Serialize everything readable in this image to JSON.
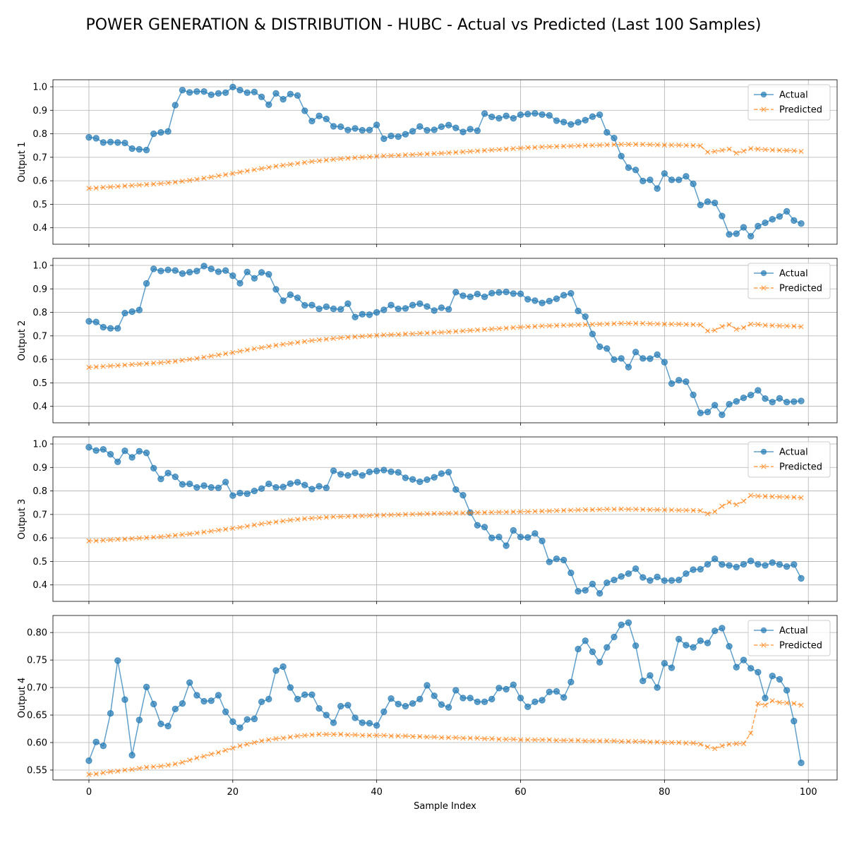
{
  "figure_title": "POWER GENERATION & DISTRIBUTION - HUBC - Actual vs Predicted (Last 100 Samples)",
  "colors": {
    "actual": "#1f77b4",
    "predicted": "#ff7f0e",
    "grid": "#b0b0b0",
    "axes": "#000000"
  },
  "chart_data": [
    {
      "type": "line",
      "title": "",
      "xlabel": "",
      "ylabel": "Output 1",
      "xlim": [
        -5,
        104
      ],
      "ylim": [
        0.33,
        1.03
      ],
      "xticks": [
        0,
        20,
        40,
        60,
        80,
        100
      ],
      "yticks": [
        0.4,
        0.5,
        0.6,
        0.7,
        0.8,
        0.9,
        1.0
      ],
      "ytick_labels": [
        "0.4",
        "0.5",
        "0.6",
        "0.7",
        "0.8",
        "0.9",
        "1.0"
      ],
      "grid": true,
      "legend": "upper right",
      "series": [
        {
          "name": "Actual",
          "marker": "o",
          "style": "solid",
          "values": [
            0.785,
            0.781,
            0.763,
            0.765,
            0.763,
            0.761,
            0.737,
            0.734,
            0.731,
            0.8,
            0.806,
            0.81,
            0.922,
            0.986,
            0.976,
            0.98,
            0.98,
            0.966,
            0.972,
            0.975,
            0.999,
            0.986,
            0.975,
            0.978,
            0.957,
            0.924,
            0.972,
            0.947,
            0.969,
            0.963,
            0.898,
            0.854,
            0.876,
            0.863,
            0.832,
            0.83,
            0.816,
            0.823,
            0.815,
            0.816,
            0.838,
            0.779,
            0.791,
            0.788,
            0.798,
            0.811,
            0.831,
            0.815,
            0.817,
            0.83,
            0.837,
            0.825,
            0.808,
            0.82,
            0.813,
            0.886,
            0.872,
            0.866,
            0.876,
            0.866,
            0.881,
            0.884,
            0.887,
            0.882,
            0.878,
            0.856,
            0.85,
            0.84,
            0.849,
            0.858,
            0.873,
            0.881,
            0.806,
            0.782,
            0.705,
            0.656,
            0.646,
            0.599,
            0.604,
            0.567,
            0.631,
            0.604,
            0.604,
            0.619,
            0.587,
            0.497,
            0.511,
            0.506,
            0.45,
            0.372,
            0.375,
            0.402,
            0.364,
            0.407,
            0.421,
            0.436,
            0.448,
            0.47,
            0.431,
            0.418
          ]
        },
        {
          "name": "Predicted",
          "marker": "x",
          "style": "dashed",
          "values": [
            0.568,
            0.569,
            0.572,
            0.574,
            0.576,
            0.578,
            0.58,
            0.582,
            0.584,
            0.586,
            0.588,
            0.591,
            0.594,
            0.598,
            0.602,
            0.606,
            0.611,
            0.616,
            0.621,
            0.626,
            0.631,
            0.637,
            0.642,
            0.647,
            0.652,
            0.657,
            0.662,
            0.666,
            0.67,
            0.674,
            0.678,
            0.682,
            0.685,
            0.688,
            0.691,
            0.694,
            0.696,
            0.698,
            0.7,
            0.702,
            0.704,
            0.706,
            0.707,
            0.708,
            0.71,
            0.711,
            0.713,
            0.714,
            0.716,
            0.717,
            0.719,
            0.721,
            0.723,
            0.725,
            0.727,
            0.729,
            0.731,
            0.733,
            0.735,
            0.737,
            0.739,
            0.741,
            0.742,
            0.744,
            0.745,
            0.746,
            0.747,
            0.748,
            0.749,
            0.75,
            0.751,
            0.752,
            0.753,
            0.754,
            0.755,
            0.755,
            0.755,
            0.755,
            0.754,
            0.753,
            0.752,
            0.752,
            0.752,
            0.751,
            0.75,
            0.749,
            0.722,
            0.725,
            0.73,
            0.735,
            0.718,
            0.727,
            0.737,
            0.735,
            0.733,
            0.731,
            0.73,
            0.729,
            0.728,
            0.725
          ]
        }
      ]
    },
    {
      "type": "line",
      "title": "",
      "xlabel": "",
      "ylabel": "Output 2",
      "xlim": [
        -5,
        104
      ],
      "ylim": [
        0.33,
        1.03
      ],
      "xticks": [
        0,
        20,
        40,
        60,
        80,
        100
      ],
      "yticks": [
        0.4,
        0.5,
        0.6,
        0.7,
        0.8,
        0.9,
        1.0
      ],
      "ytick_labels": [
        "0.4",
        "0.5",
        "0.6",
        "0.7",
        "0.8",
        "0.9",
        "1.0"
      ],
      "grid": true,
      "legend": "upper right",
      "series": [
        {
          "name": "Actual",
          "marker": "o",
          "style": "solid",
          "values": [
            0.762,
            0.759,
            0.737,
            0.732,
            0.732,
            0.797,
            0.803,
            0.81,
            0.923,
            0.985,
            0.976,
            0.981,
            0.978,
            0.965,
            0.971,
            0.976,
            0.997,
            0.985,
            0.973,
            0.978,
            0.956,
            0.924,
            0.972,
            0.945,
            0.97,
            0.962,
            0.898,
            0.85,
            0.875,
            0.862,
            0.83,
            0.831,
            0.815,
            0.824,
            0.815,
            0.813,
            0.837,
            0.78,
            0.792,
            0.79,
            0.8,
            0.811,
            0.831,
            0.815,
            0.817,
            0.831,
            0.837,
            0.825,
            0.808,
            0.82,
            0.813,
            0.886,
            0.871,
            0.866,
            0.878,
            0.866,
            0.882,
            0.885,
            0.887,
            0.88,
            0.879,
            0.856,
            0.85,
            0.84,
            0.848,
            0.858,
            0.873,
            0.881,
            0.806,
            0.782,
            0.708,
            0.654,
            0.646,
            0.599,
            0.604,
            0.567,
            0.631,
            0.604,
            0.603,
            0.62,
            0.588,
            0.497,
            0.511,
            0.505,
            0.449,
            0.372,
            0.376,
            0.405,
            0.364,
            0.409,
            0.421,
            0.436,
            0.448,
            0.468,
            0.433,
            0.418,
            0.434,
            0.418,
            0.42,
            0.423
          ]
        },
        {
          "name": "Predicted",
          "marker": "x",
          "style": "dashed",
          "values": [
            0.566,
            0.568,
            0.57,
            0.572,
            0.574,
            0.576,
            0.578,
            0.58,
            0.582,
            0.584,
            0.586,
            0.589,
            0.592,
            0.596,
            0.6,
            0.604,
            0.609,
            0.614,
            0.619,
            0.624,
            0.629,
            0.635,
            0.64,
            0.645,
            0.65,
            0.655,
            0.66,
            0.664,
            0.668,
            0.672,
            0.676,
            0.68,
            0.683,
            0.686,
            0.689,
            0.692,
            0.694,
            0.696,
            0.698,
            0.7,
            0.702,
            0.704,
            0.705,
            0.706,
            0.708,
            0.709,
            0.711,
            0.712,
            0.714,
            0.715,
            0.717,
            0.719,
            0.721,
            0.723,
            0.725,
            0.727,
            0.729,
            0.731,
            0.733,
            0.735,
            0.737,
            0.739,
            0.74,
            0.742,
            0.743,
            0.744,
            0.745,
            0.746,
            0.747,
            0.748,
            0.749,
            0.75,
            0.751,
            0.752,
            0.753,
            0.753,
            0.753,
            0.753,
            0.752,
            0.751,
            0.75,
            0.75,
            0.75,
            0.749,
            0.748,
            0.747,
            0.721,
            0.724,
            0.74,
            0.748,
            0.728,
            0.735,
            0.75,
            0.749,
            0.745,
            0.744,
            0.743,
            0.742,
            0.741,
            0.739
          ]
        }
      ]
    },
    {
      "type": "line",
      "title": "",
      "xlabel": "",
      "ylabel": "Output 3",
      "xlim": [
        -5,
        104
      ],
      "ylim": [
        0.33,
        1.03
      ],
      "xticks": [
        0,
        20,
        40,
        60,
        80,
        100
      ],
      "yticks": [
        0.4,
        0.5,
        0.6,
        0.7,
        0.8,
        0.9,
        1.0
      ],
      "ytick_labels": [
        "0.4",
        "0.5",
        "0.6",
        "0.7",
        "0.8",
        "0.9",
        "1.0"
      ],
      "grid": true,
      "legend": "upper right",
      "series": [
        {
          "name": "Actual",
          "marker": "o",
          "style": "solid",
          "values": [
            0.986,
            0.972,
            0.977,
            0.956,
            0.924,
            0.971,
            0.943,
            0.969,
            0.962,
            0.897,
            0.851,
            0.876,
            0.86,
            0.828,
            0.83,
            0.815,
            0.823,
            0.815,
            0.813,
            0.838,
            0.78,
            0.791,
            0.788,
            0.8,
            0.81,
            0.83,
            0.815,
            0.817,
            0.831,
            0.837,
            0.825,
            0.808,
            0.82,
            0.813,
            0.886,
            0.871,
            0.866,
            0.877,
            0.866,
            0.881,
            0.885,
            0.889,
            0.882,
            0.879,
            0.856,
            0.849,
            0.839,
            0.848,
            0.858,
            0.874,
            0.88,
            0.806,
            0.782,
            0.708,
            0.654,
            0.646,
            0.6,
            0.604,
            0.567,
            0.632,
            0.604,
            0.602,
            0.619,
            0.587,
            0.498,
            0.511,
            0.506,
            0.451,
            0.373,
            0.377,
            0.404,
            0.364,
            0.409,
            0.421,
            0.436,
            0.448,
            0.469,
            0.432,
            0.419,
            0.434,
            0.418,
            0.419,
            0.421,
            0.448,
            0.465,
            0.467,
            0.488,
            0.511,
            0.487,
            0.483,
            0.476,
            0.488,
            0.502,
            0.488,
            0.483,
            0.495,
            0.487,
            0.478,
            0.487,
            0.428
          ]
        },
        {
          "name": "Predicted",
          "marker": "x",
          "style": "dashed",
          "values": [
            0.587,
            0.588,
            0.59,
            0.592,
            0.594,
            0.595,
            0.597,
            0.599,
            0.601,
            0.603,
            0.605,
            0.608,
            0.611,
            0.614,
            0.617,
            0.621,
            0.625,
            0.629,
            0.633,
            0.637,
            0.641,
            0.645,
            0.65,
            0.655,
            0.66,
            0.664,
            0.668,
            0.672,
            0.676,
            0.679,
            0.682,
            0.684,
            0.686,
            0.688,
            0.69,
            0.691,
            0.692,
            0.693,
            0.694,
            0.695,
            0.696,
            0.697,
            0.698,
            0.699,
            0.7,
            0.701,
            0.702,
            0.703,
            0.704,
            0.704,
            0.705,
            0.706,
            0.706,
            0.707,
            0.708,
            0.708,
            0.709,
            0.71,
            0.71,
            0.711,
            0.712,
            0.712,
            0.713,
            0.714,
            0.715,
            0.716,
            0.717,
            0.718,
            0.719,
            0.72,
            0.72,
            0.721,
            0.722,
            0.722,
            0.723,
            0.722,
            0.722,
            0.721,
            0.72,
            0.72,
            0.719,
            0.719,
            0.718,
            0.718,
            0.717,
            0.716,
            0.703,
            0.712,
            0.735,
            0.752,
            0.742,
            0.757,
            0.781,
            0.778,
            0.777,
            0.776,
            0.775,
            0.774,
            0.773,
            0.771
          ]
        }
      ]
    },
    {
      "type": "line",
      "title": "",
      "xlabel": "Sample Index",
      "ylabel": "Output 4",
      "xlim": [
        -5,
        104
      ],
      "ylim": [
        0.532,
        0.831
      ],
      "xticks": [
        0,
        20,
        40,
        60,
        80,
        100
      ],
      "yticks": [
        0.55,
        0.6,
        0.65,
        0.7,
        0.75,
        0.8
      ],
      "ytick_labels": [
        "0.55",
        "0.60",
        "0.65",
        "0.70",
        "0.75",
        "0.80"
      ],
      "grid": true,
      "legend": "upper right",
      "series": [
        {
          "name": "Actual",
          "marker": "o",
          "style": "solid",
          "values": [
            0.567,
            0.601,
            0.594,
            0.653,
            0.749,
            0.678,
            0.577,
            0.641,
            0.701,
            0.67,
            0.634,
            0.63,
            0.661,
            0.671,
            0.709,
            0.686,
            0.675,
            0.676,
            0.686,
            0.656,
            0.638,
            0.627,
            0.642,
            0.643,
            0.674,
            0.679,
            0.731,
            0.738,
            0.7,
            0.679,
            0.687,
            0.687,
            0.662,
            0.65,
            0.636,
            0.666,
            0.668,
            0.645,
            0.636,
            0.635,
            0.631,
            0.656,
            0.68,
            0.67,
            0.666,
            0.671,
            0.679,
            0.704,
            0.685,
            0.669,
            0.664,
            0.695,
            0.681,
            0.681,
            0.674,
            0.674,
            0.679,
            0.699,
            0.697,
            0.705,
            0.681,
            0.665,
            0.674,
            0.677,
            0.692,
            0.693,
            0.682,
            0.71,
            0.77,
            0.785,
            0.765,
            0.746,
            0.773,
            0.792,
            0.814,
            0.818,
            0.776,
            0.712,
            0.722,
            0.7,
            0.744,
            0.736,
            0.788,
            0.777,
            0.773,
            0.785,
            0.781,
            0.803,
            0.808,
            0.775,
            0.737,
            0.75,
            0.735,
            0.728,
            0.681,
            0.721,
            0.715,
            0.695,
            0.639,
            0.563
          ]
        },
        {
          "name": "Predicted",
          "marker": "x",
          "style": "dashed",
          "values": [
            0.542,
            0.543,
            0.545,
            0.547,
            0.548,
            0.55,
            0.551,
            0.553,
            0.555,
            0.556,
            0.557,
            0.559,
            0.561,
            0.564,
            0.568,
            0.572,
            0.575,
            0.579,
            0.582,
            0.586,
            0.59,
            0.594,
            0.597,
            0.6,
            0.603,
            0.605,
            0.607,
            0.608,
            0.61,
            0.612,
            0.613,
            0.614,
            0.615,
            0.615,
            0.615,
            0.615,
            0.614,
            0.614,
            0.613,
            0.613,
            0.613,
            0.613,
            0.612,
            0.612,
            0.612,
            0.611,
            0.611,
            0.61,
            0.61,
            0.609,
            0.609,
            0.609,
            0.608,
            0.608,
            0.608,
            0.607,
            0.607,
            0.606,
            0.606,
            0.606,
            0.605,
            0.605,
            0.605,
            0.605,
            0.605,
            0.604,
            0.604,
            0.604,
            0.604,
            0.603,
            0.603,
            0.603,
            0.603,
            0.603,
            0.602,
            0.602,
            0.602,
            0.602,
            0.601,
            0.601,
            0.6,
            0.6,
            0.6,
            0.599,
            0.599,
            0.597,
            0.592,
            0.589,
            0.594,
            0.597,
            0.598,
            0.598,
            0.617,
            0.671,
            0.668,
            0.676,
            0.673,
            0.672,
            0.671,
            0.668
          ]
        }
      ]
    }
  ]
}
